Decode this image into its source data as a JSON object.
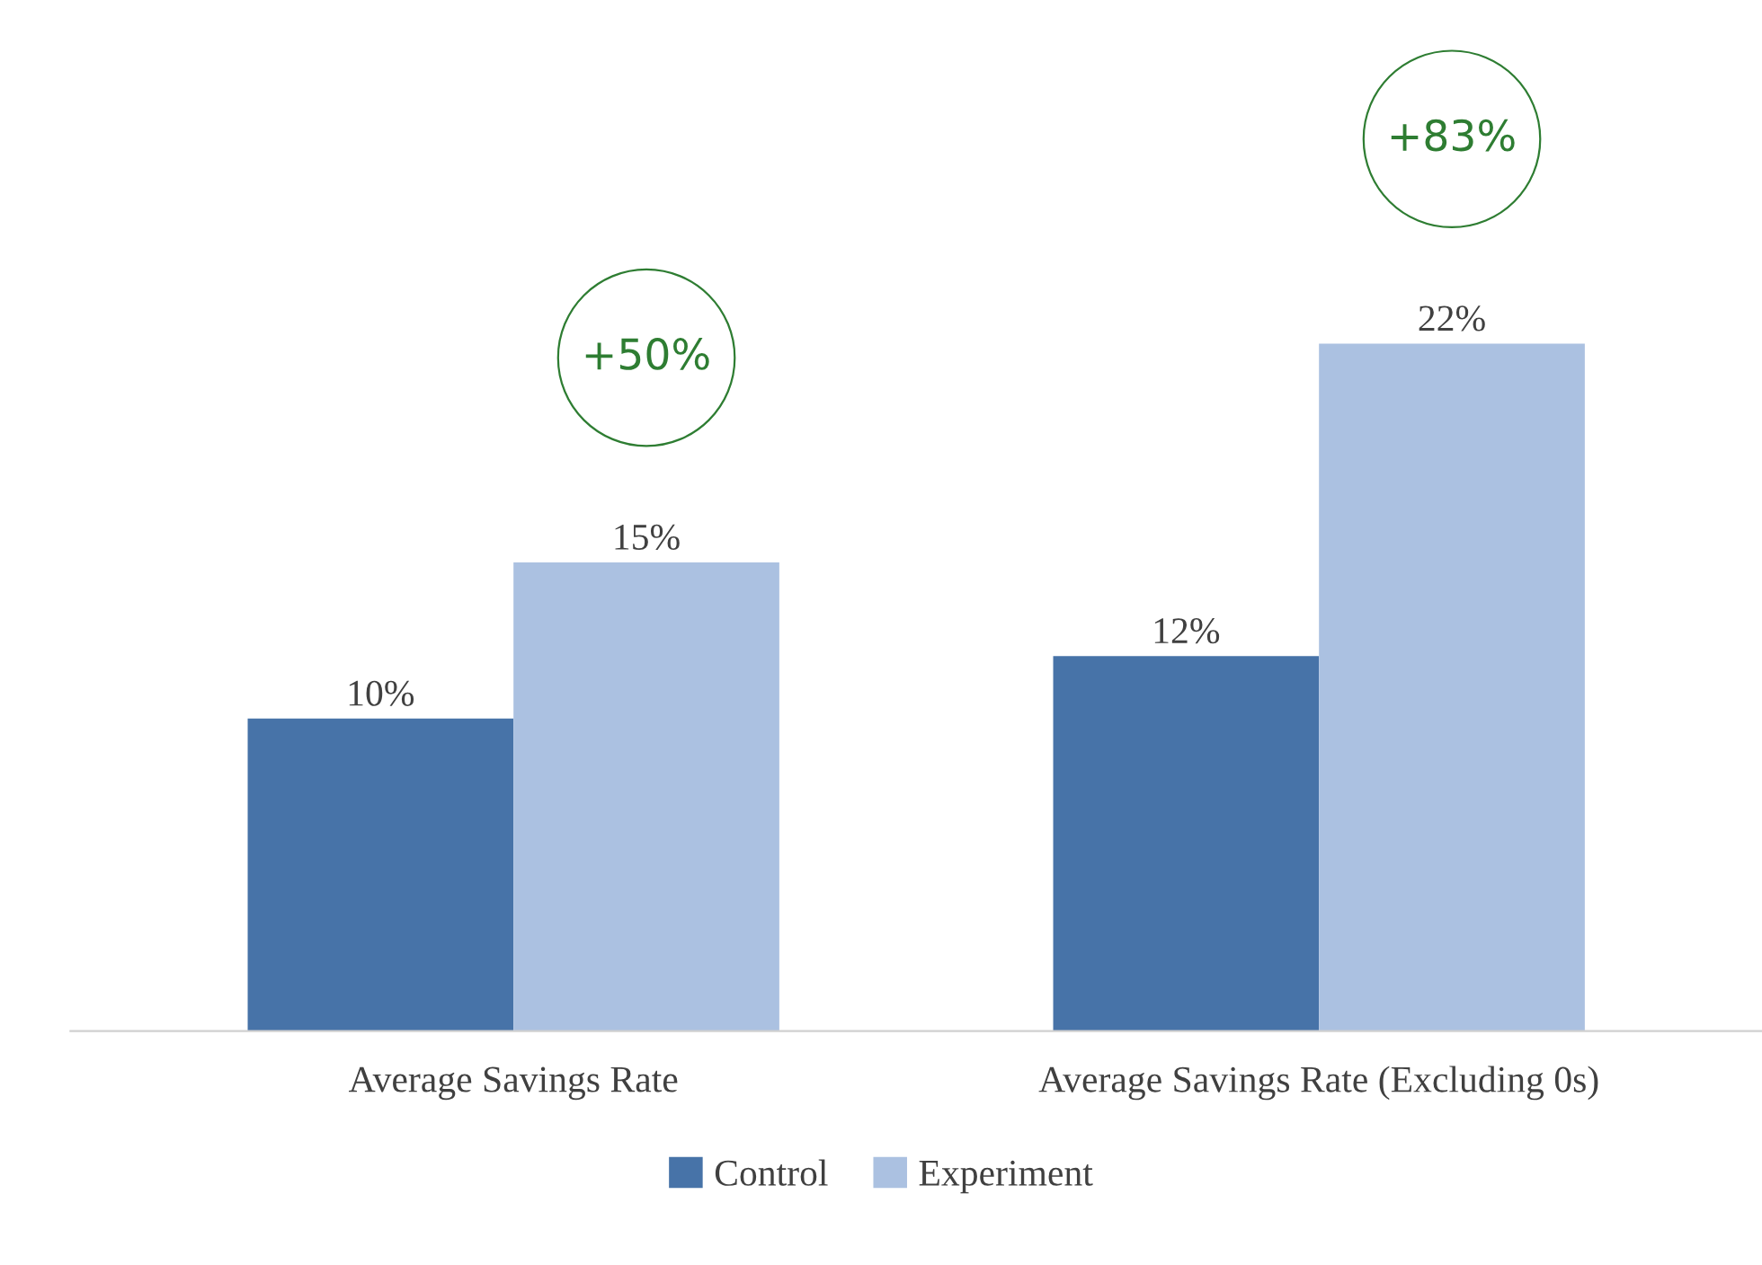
{
  "chart_data": {
    "type": "bar",
    "categories": [
      "Average Savings Rate",
      "Average Savings Rate (Excluding 0s)"
    ],
    "series": [
      {
        "name": "Control",
        "color": "#4773a8",
        "values": [
          10,
          12
        ],
        "value_labels": [
          "10%",
          "12%"
        ]
      },
      {
        "name": "Experiment",
        "color": "#abc1e1",
        "values": [
          15,
          22
        ],
        "value_labels": [
          "15%",
          "22%"
        ]
      }
    ],
    "legend": "bottom",
    "grid": false,
    "tick_labels": "x",
    "annotations": [
      "+50%",
      "+83%"
    ]
  }
}
